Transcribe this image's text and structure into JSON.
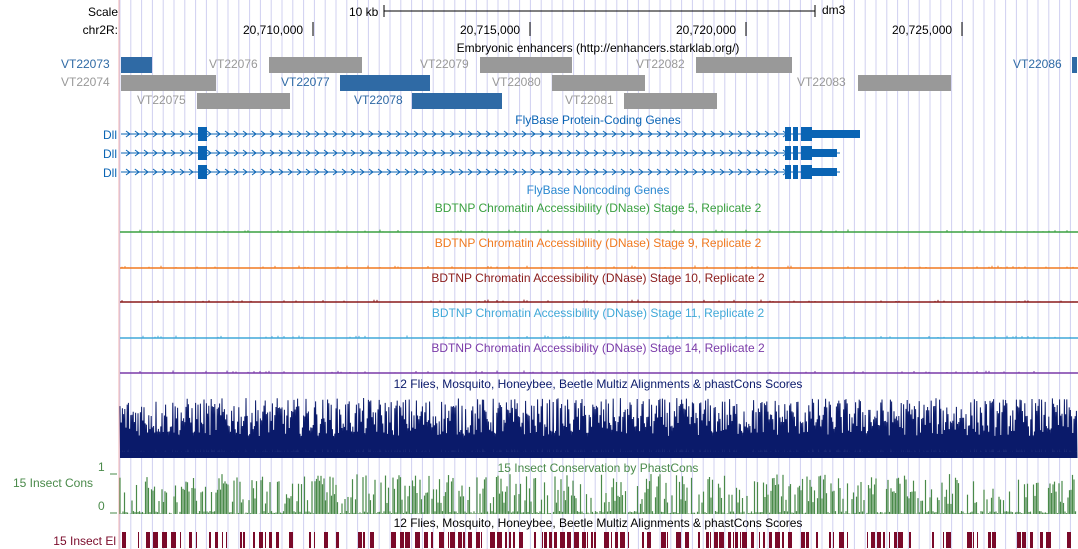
{
  "colors": {
    "gridline": "#d0d0f0",
    "left_margin_line": "#f0b0b0",
    "enhancer_blue": "#2f6aa5",
    "enhancer_gray": "#999999",
    "gene_blue": "#0a64b4",
    "noncoding_blue": "#2a88d0",
    "dnase_stage5": "#3aa040",
    "dnase_stage9": "#f07a20",
    "dnase_stage10": "#8a1a1a",
    "dnase_stage11": "#40a8d8",
    "dnase_stage14": "#7a3aa8",
    "multiz": "#0a1a6a",
    "phastcons": "#4a8a4a",
    "elements": "#7a0a2a"
  },
  "ruler": {
    "scale_label": "Scale",
    "chrom_label": "chr2R:",
    "scale_bar_text": "10 kb",
    "assembly": "dm3",
    "ticks": [
      "20,710,000",
      "20,715,000",
      "20,720,000",
      "20,725,000"
    ]
  },
  "tracks": {
    "enhancers": {
      "title": "Embryonic enhancers (http://enhancers.starklab.org/)",
      "items": [
        {
          "name": "VT22073",
          "highlight": true
        },
        {
          "name": "VT22074",
          "highlight": false
        },
        {
          "name": "VT22075",
          "highlight": false
        },
        {
          "name": "VT22076",
          "highlight": false
        },
        {
          "name": "VT22077",
          "highlight": true
        },
        {
          "name": "VT22078",
          "highlight": true
        },
        {
          "name": "VT22079",
          "highlight": false
        },
        {
          "name": "VT22080",
          "highlight": false
        },
        {
          "name": "VT22081",
          "highlight": false
        },
        {
          "name": "VT22082",
          "highlight": false
        },
        {
          "name": "VT22083",
          "highlight": false
        },
        {
          "name": "VT22086",
          "highlight": true
        }
      ]
    },
    "genes": {
      "title": "FlyBase Protein-Coding Genes",
      "transcripts": [
        "Dll",
        "Dll",
        "Dll"
      ]
    },
    "noncoding": {
      "title": "FlyBase Noncoding Genes"
    },
    "dnase": [
      {
        "title": "BDTNP Chromatin Accessibility (DNase) Stage 5, Replicate 2"
      },
      {
        "title": "BDTNP Chromatin Accessibility (DNase) Stage 9, Replicate 2"
      },
      {
        "title": "BDTNP Chromatin Accessibility (DNase) Stage 10, Replicate 2"
      },
      {
        "title": "BDTNP Chromatin Accessibility (DNase) Stage 11, Replicate 2"
      },
      {
        "title": "BDTNP Chromatin Accessibility (DNase) Stage 14, Replicate 2"
      }
    ],
    "multiz": {
      "title": "12 Flies, Mosquito, Honeybee, Beetle Multiz Alignments & phastCons Scores"
    },
    "cons": {
      "title": "15 Insect Conservation by PhastCons",
      "side_label": "15 Insect Cons",
      "ymax": "1",
      "ymin": "0"
    },
    "elements": {
      "title": "12 Flies, Mosquito, Honeybee, Beetle Multiz Alignments & phastCons Scores",
      "side_label": "15 Insect El"
    }
  }
}
